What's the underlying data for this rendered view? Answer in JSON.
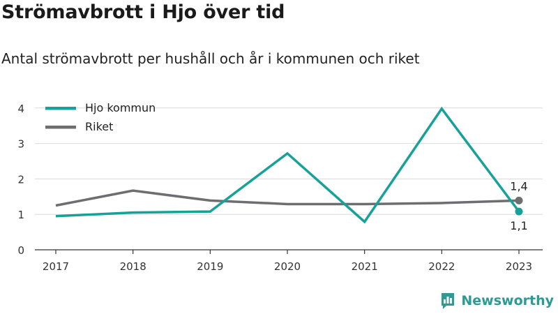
{
  "header": {
    "title": "Strömavbrott i Hjo över tid",
    "subtitle": "Antal strömavbrott per hushåll och år i kommunen och riket"
  },
  "brand": {
    "name": "Newsworthy",
    "logo_icon": "newsworthy-logo-icon"
  },
  "colors": {
    "hjo": "#16a199",
    "riket": "#6e6d72",
    "grid": "#d9d9d9",
    "axis": "#333333"
  },
  "chart_data": {
    "type": "line",
    "title": "Strömavbrott i Hjo över tid",
    "subtitle": "Antal strömavbrott per hushåll och år i kommunen och riket",
    "xlabel": "",
    "ylabel": "",
    "categories": [
      "2017",
      "2018",
      "2019",
      "2020",
      "2021",
      "2022",
      "2023"
    ],
    "ylim": [
      0,
      4.4
    ],
    "yticks": [
      0,
      1,
      2,
      3,
      4
    ],
    "grid": true,
    "legend_position": "top-left",
    "series": [
      {
        "name": "Hjo kommun",
        "color": "#16a199",
        "values": [
          0.95,
          1.05,
          1.08,
          2.72,
          0.79,
          3.98,
          1.08
        ],
        "end_label": "1,1"
      },
      {
        "name": "Riket",
        "color": "#6e6d72",
        "values": [
          1.25,
          1.67,
          1.39,
          1.29,
          1.29,
          1.32,
          1.39
        ],
        "end_label": "1,4"
      }
    ]
  }
}
